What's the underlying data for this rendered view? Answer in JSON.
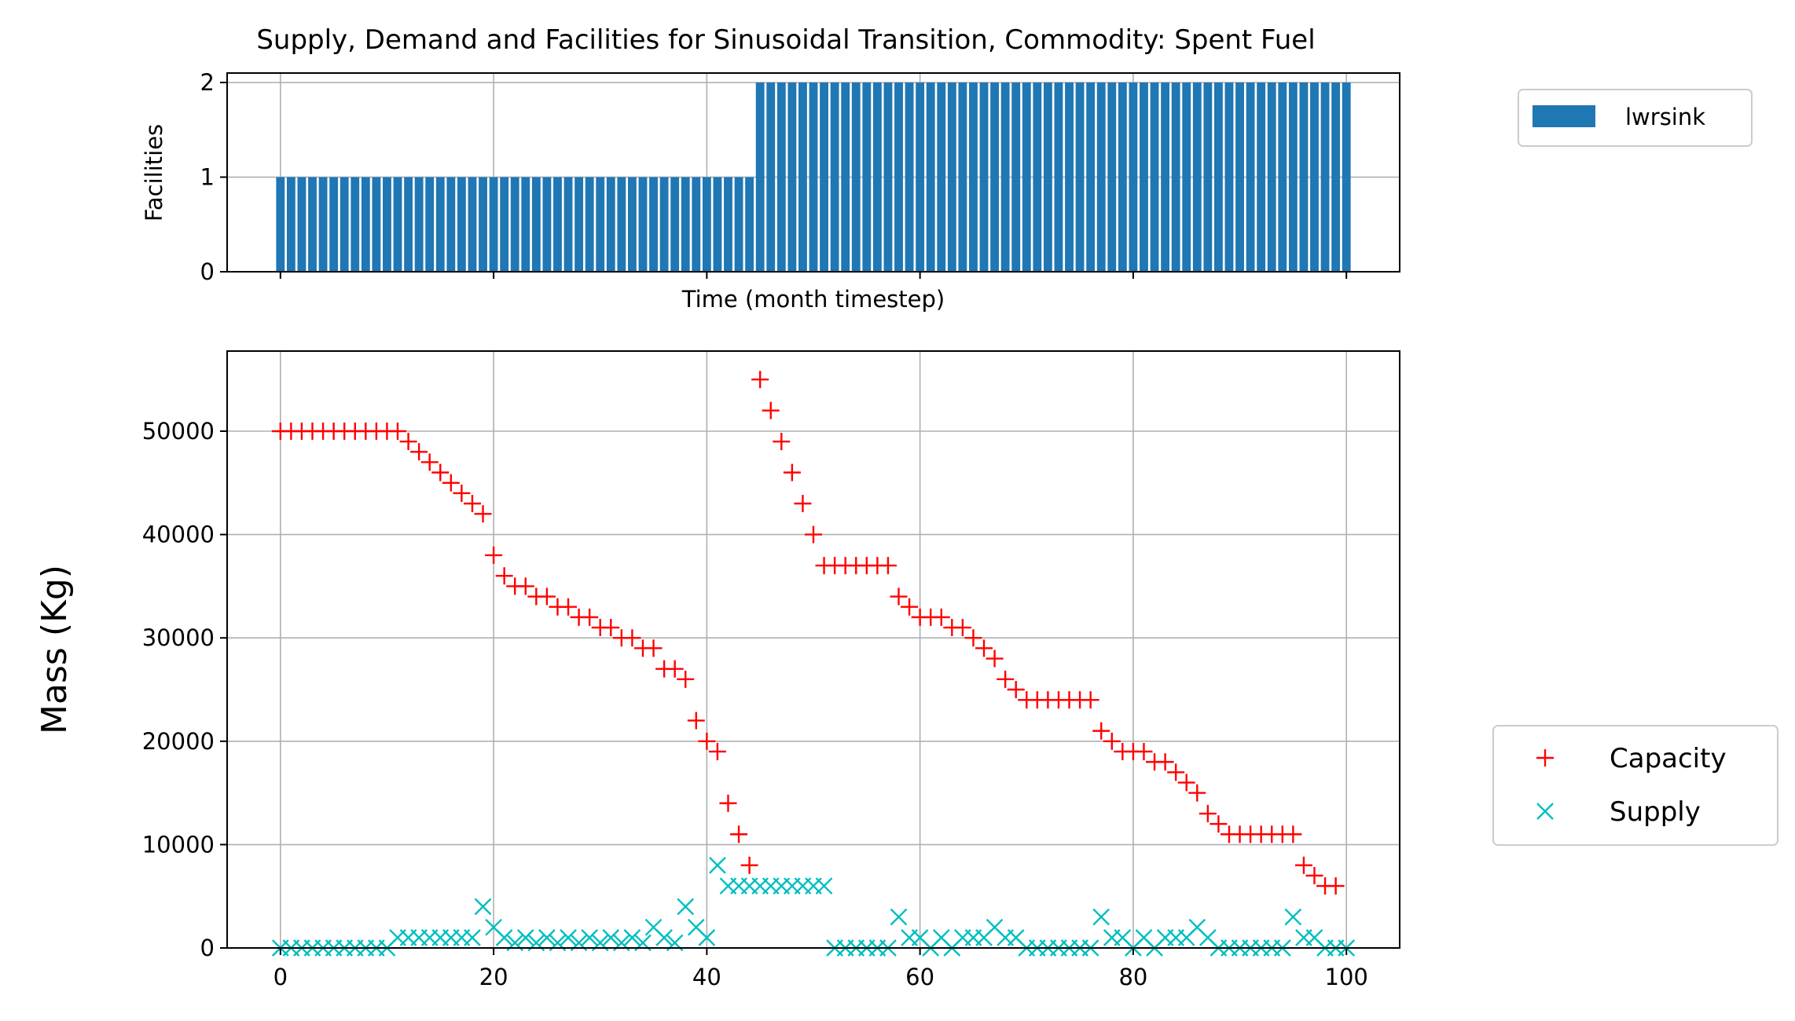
{
  "chart_data": [
    {
      "type": "bar",
      "title": "Supply, Demand and Facilities for Sinusoidal Transition, Commodity: Spent Fuel",
      "xlabel": "Time (month timestep)",
      "ylabel": "Facilities",
      "xlim": [
        -5,
        105
      ],
      "ylim": [
        0,
        2.1
      ],
      "xticks": [
        0,
        20,
        40,
        60,
        80,
        100
      ],
      "yticks": [
        0,
        1,
        2
      ],
      "grid": true,
      "legend_position": "outside-top-right",
      "series": [
        {
          "name": "lwrsink",
          "color": "#1f77b4",
          "x_start": 0,
          "values": [
            1,
            1,
            1,
            1,
            1,
            1,
            1,
            1,
            1,
            1,
            1,
            1,
            1,
            1,
            1,
            1,
            1,
            1,
            1,
            1,
            1,
            1,
            1,
            1,
            1,
            1,
            1,
            1,
            1,
            1,
            1,
            1,
            1,
            1,
            1,
            1,
            1,
            1,
            1,
            1,
            1,
            1,
            1,
            1,
            1,
            2,
            2,
            2,
            2,
            2,
            2,
            2,
            2,
            2,
            2,
            2,
            2,
            2,
            2,
            2,
            2,
            2,
            2,
            2,
            2,
            2,
            2,
            2,
            2,
            2,
            2,
            2,
            2,
            2,
            2,
            2,
            2,
            2,
            2,
            2,
            2,
            2,
            2,
            2,
            2,
            2,
            2,
            2,
            2,
            2,
            2,
            2,
            2,
            2,
            2,
            2,
            2,
            2,
            2,
            2,
            2
          ]
        }
      ]
    },
    {
      "type": "scatter",
      "xlabel": "",
      "ylabel": "Mass (Kg)",
      "xlim": [
        -5,
        105
      ],
      "ylim": [
        0,
        57750
      ],
      "xticks": [
        0,
        20,
        40,
        60,
        80,
        100
      ],
      "xtick_labels": [
        "0",
        "20",
        "40",
        "60",
        "80",
        "100"
      ],
      "yticks": [
        0,
        10000,
        20000,
        30000,
        40000,
        50000
      ],
      "ytick_labels": [
        "0",
        "10000",
        "20000",
        "30000",
        "40000",
        "50000"
      ],
      "grid": true,
      "legend_position": "outside-bottom-right",
      "series": [
        {
          "name": "Capacity",
          "marker": "+",
          "color": "#ff0000",
          "x": [
            0,
            1,
            2,
            3,
            4,
            5,
            6,
            7,
            8,
            9,
            10,
            11,
            12,
            13,
            14,
            15,
            16,
            17,
            18,
            19,
            20,
            21,
            22,
            23,
            24,
            25,
            26,
            27,
            28,
            29,
            30,
            31,
            32,
            33,
            34,
            35,
            36,
            37,
            38,
            39,
            40,
            41,
            42,
            43,
            44,
            45,
            46,
            47,
            48,
            49,
            50,
            51,
            52,
            53,
            54,
            55,
            56,
            57,
            58,
            59,
            60,
            61,
            62,
            63,
            64,
            65,
            66,
            67,
            68,
            69,
            70,
            71,
            72,
            73,
            74,
            75,
            76,
            77,
            78,
            79,
            80,
            81,
            82,
            83,
            84,
            85,
            86,
            87,
            88,
            89,
            90,
            91,
            92,
            93,
            94,
            95,
            96,
            97,
            98,
            99
          ],
          "y": [
            50000,
            50000,
            50000,
            50000,
            50000,
            50000,
            50000,
            50000,
            50000,
            50000,
            50000,
            50000,
            49000,
            48000,
            47000,
            46000,
            45000,
            44000,
            43000,
            42000,
            38000,
            36000,
            35000,
            35000,
            34000,
            34000,
            33000,
            33000,
            32000,
            32000,
            31000,
            31000,
            30000,
            30000,
            29000,
            29000,
            27000,
            27000,
            26000,
            22000,
            20000,
            19000,
            14000,
            11000,
            8000,
            55000,
            52000,
            49000,
            46000,
            43000,
            40000,
            37000,
            37000,
            37000,
            37000,
            37000,
            37000,
            37000,
            34000,
            33000,
            32000,
            32000,
            32000,
            31000,
            31000,
            30000,
            29000,
            28000,
            26000,
            25000,
            24000,
            24000,
            24000,
            24000,
            24000,
            24000,
            24000,
            21000,
            20000,
            19000,
            19000,
            19000,
            18000,
            18000,
            17000,
            16000,
            15000,
            13000,
            12000,
            11000,
            11000,
            11000,
            11000,
            11000,
            11000,
            11000,
            8000,
            7000,
            6000,
            6000
          ]
        },
        {
          "name": "Supply",
          "marker": "x",
          "color": "#00bfbf",
          "x": [
            0,
            1,
            2,
            3,
            4,
            5,
            6,
            7,
            8,
            9,
            10,
            11,
            12,
            13,
            14,
            15,
            16,
            17,
            18,
            19,
            20,
            21,
            22,
            23,
            24,
            25,
            26,
            27,
            28,
            29,
            30,
            31,
            32,
            33,
            34,
            35,
            36,
            37,
            38,
            39,
            40,
            41,
            42,
            43,
            44,
            45,
            46,
            47,
            48,
            49,
            50,
            51,
            52,
            53,
            54,
            55,
            56,
            57,
            58,
            59,
            60,
            61,
            62,
            63,
            64,
            65,
            66,
            67,
            68,
            69,
            70,
            71,
            72,
            73,
            74,
            75,
            76,
            77,
            78,
            79,
            80,
            81,
            82,
            83,
            84,
            85,
            86,
            87,
            88,
            89,
            90,
            91,
            92,
            93,
            94,
            95,
            96,
            97,
            98,
            99,
            100
          ],
          "y": [
            0,
            0,
            0,
            0,
            0,
            0,
            0,
            0,
            0,
            0,
            0,
            1000,
            1000,
            1000,
            1000,
            1000,
            1000,
            1000,
            1000,
            4000,
            2000,
            1000,
            500,
            1000,
            500,
            1000,
            500,
            1000,
            500,
            1000,
            500,
            1000,
            500,
            1000,
            500,
            2000,
            1000,
            500,
            4000,
            2000,
            1000,
            8000,
            6000,
            6000,
            6000,
            6000,
            6000,
            6000,
            6000,
            6000,
            6000,
            6000,
            0,
            0,
            0,
            0,
            0,
            0,
            3000,
            1000,
            1000,
            0,
            1000,
            0,
            1000,
            1000,
            1000,
            2000,
            1000,
            1000,
            0,
            0,
            0,
            0,
            0,
            0,
            0,
            3000,
            1000,
            1000,
            0,
            1000,
            0,
            1000,
            1000,
            1000,
            2000,
            1000,
            0,
            0,
            0,
            0,
            0,
            0,
            0,
            3000,
            1000,
            1000,
            0,
            0,
            0
          ]
        }
      ]
    }
  ]
}
